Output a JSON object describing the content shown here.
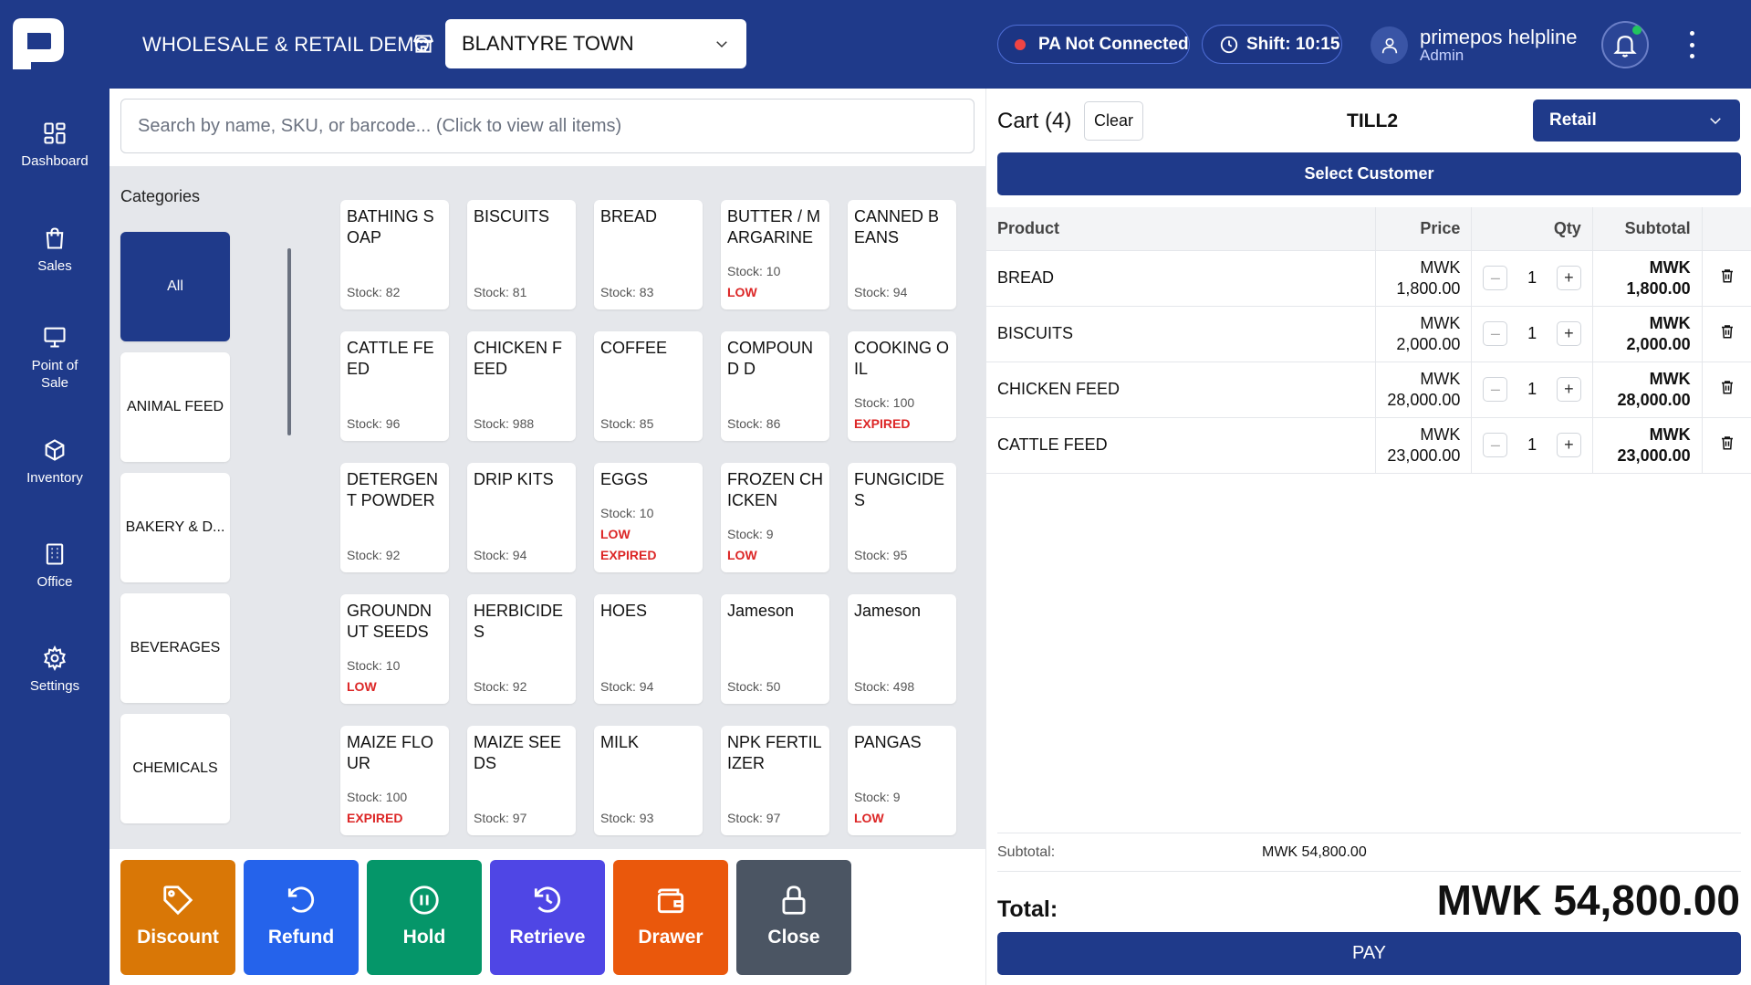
{
  "header": {
    "company": "WHOLESALE & RETAIL DEMO",
    "branch": "BLANTYRE TOWN",
    "pa_status": "PA Not Connected",
    "shift": "Shift: 10:15",
    "user_name": "primepos helpline",
    "user_role": "Admin"
  },
  "sidebar": {
    "items": [
      {
        "label": "Dashboard",
        "icon": "grid-icon"
      },
      {
        "label": "Sales",
        "icon": "shopping-bag-icon"
      },
      {
        "label": "Point of Sale",
        "icon": "monitor-icon"
      },
      {
        "label": "Inventory",
        "icon": "box-icon"
      },
      {
        "label": "Office",
        "icon": "building-icon"
      },
      {
        "label": "Settings",
        "icon": "gear-icon"
      }
    ]
  },
  "search": {
    "placeholder": "Search by name, SKU, or barcode... (Click to view all items)"
  },
  "categories": {
    "title": "Categories",
    "items": [
      "All",
      "ANIMAL FEED",
      "BAKERY & D...",
      "BEVERAGES",
      "CHEMICALS"
    ]
  },
  "products": [
    {
      "name": "BATHING SOAP",
      "stock": "Stock: 82",
      "flags": []
    },
    {
      "name": "BISCUITS",
      "stock": "Stock: 81",
      "flags": []
    },
    {
      "name": "BREAD",
      "stock": "Stock: 83",
      "flags": []
    },
    {
      "name": "BUTTER / MARGARINE",
      "stock": "Stock: 10",
      "flags": [
        "LOW"
      ]
    },
    {
      "name": "CANNED BEANS",
      "stock": "Stock: 94",
      "flags": []
    },
    {
      "name": "CATTLE FEED",
      "stock": "Stock: 96",
      "flags": []
    },
    {
      "name": "CHICKEN FEED",
      "stock": "Stock: 988",
      "flags": []
    },
    {
      "name": "COFFEE",
      "stock": "Stock: 85",
      "flags": []
    },
    {
      "name": "COMPOUND D",
      "stock": "Stock: 86",
      "flags": []
    },
    {
      "name": "COOKING OIL",
      "stock": "Stock: 100",
      "flags": [
        "EXPIRED"
      ]
    },
    {
      "name": "DETERGENT POWDER",
      "stock": "Stock: 92",
      "flags": []
    },
    {
      "name": "DRIP KITS",
      "stock": "Stock: 94",
      "flags": []
    },
    {
      "name": "EGGS",
      "stock": "Stock: 10",
      "flags": [
        "LOW",
        "EXPIRED"
      ]
    },
    {
      "name": "FROZEN CHICKEN",
      "stock": "Stock: 9",
      "flags": [
        "LOW"
      ]
    },
    {
      "name": "FUNGICIDES",
      "stock": "Stock: 95",
      "flags": []
    },
    {
      "name": "GROUNDNUT SEEDS",
      "stock": "Stock: 10",
      "flags": [
        "LOW"
      ]
    },
    {
      "name": "HERBICIDES",
      "stock": "Stock: 92",
      "flags": []
    },
    {
      "name": "HOES",
      "stock": "Stock: 94",
      "flags": []
    },
    {
      "name": "Jameson",
      "stock": "Stock: 50",
      "flags": []
    },
    {
      "name": "Jameson",
      "stock": "Stock: 498",
      "flags": []
    },
    {
      "name": "MAIZE FLOUR",
      "stock": "Stock: 100",
      "flags": [
        "EXPIRED"
      ]
    },
    {
      "name": "MAIZE SEEDS",
      "stock": "Stock: 97",
      "flags": []
    },
    {
      "name": "MILK",
      "stock": "Stock: 93",
      "flags": []
    },
    {
      "name": "NPK FERTILIZER",
      "stock": "Stock: 97",
      "flags": []
    },
    {
      "name": "PANGAS",
      "stock": "Stock: 9",
      "flags": [
        "LOW"
      ]
    }
  ],
  "actions": [
    {
      "label": "Discount",
      "icon": "tag-icon",
      "color": "#d97706"
    },
    {
      "label": "Refund",
      "icon": "undo-icon",
      "color": "#2563eb"
    },
    {
      "label": "Hold",
      "icon": "pause-icon",
      "color": "#059669"
    },
    {
      "label": "Retrieve",
      "icon": "history-icon",
      "color": "#4f46e5"
    },
    {
      "label": "Drawer",
      "icon": "wallet-icon",
      "color": "#ea580c"
    },
    {
      "label": "Close",
      "icon": "lock-icon",
      "color": "#4b5563"
    }
  ],
  "cart": {
    "title": "Cart (4)",
    "clear": "Clear",
    "till": "TILL2",
    "mode": "Retail",
    "select_customer": "Select Customer",
    "columns": [
      "Product",
      "Price",
      "Qty",
      "Subtotal"
    ],
    "items": [
      {
        "product": "BREAD",
        "currency": "MWK",
        "price": "1,800.00",
        "qty": "1",
        "subtotal": "1,800.00"
      },
      {
        "product": "BISCUITS",
        "currency": "MWK",
        "price": "2,000.00",
        "qty": "1",
        "subtotal": "2,000.00"
      },
      {
        "product": "CHICKEN FEED",
        "currency": "MWK",
        "price": "28,000.00",
        "qty": "1",
        "subtotal": "28,000.00"
      },
      {
        "product": "CATTLE FEED",
        "currency": "MWK",
        "price": "23,000.00",
        "qty": "1",
        "subtotal": "23,000.00"
      }
    ],
    "subtotal_label": "Subtotal:",
    "subtotal_value": "MWK 54,800.00",
    "total_label": "Total:",
    "total_value": "MWK 54,800.00",
    "pay": "PAY"
  },
  "colors": {
    "primary": "#1f3a8a",
    "danger": "#dc2626",
    "online": "#22c55e"
  }
}
